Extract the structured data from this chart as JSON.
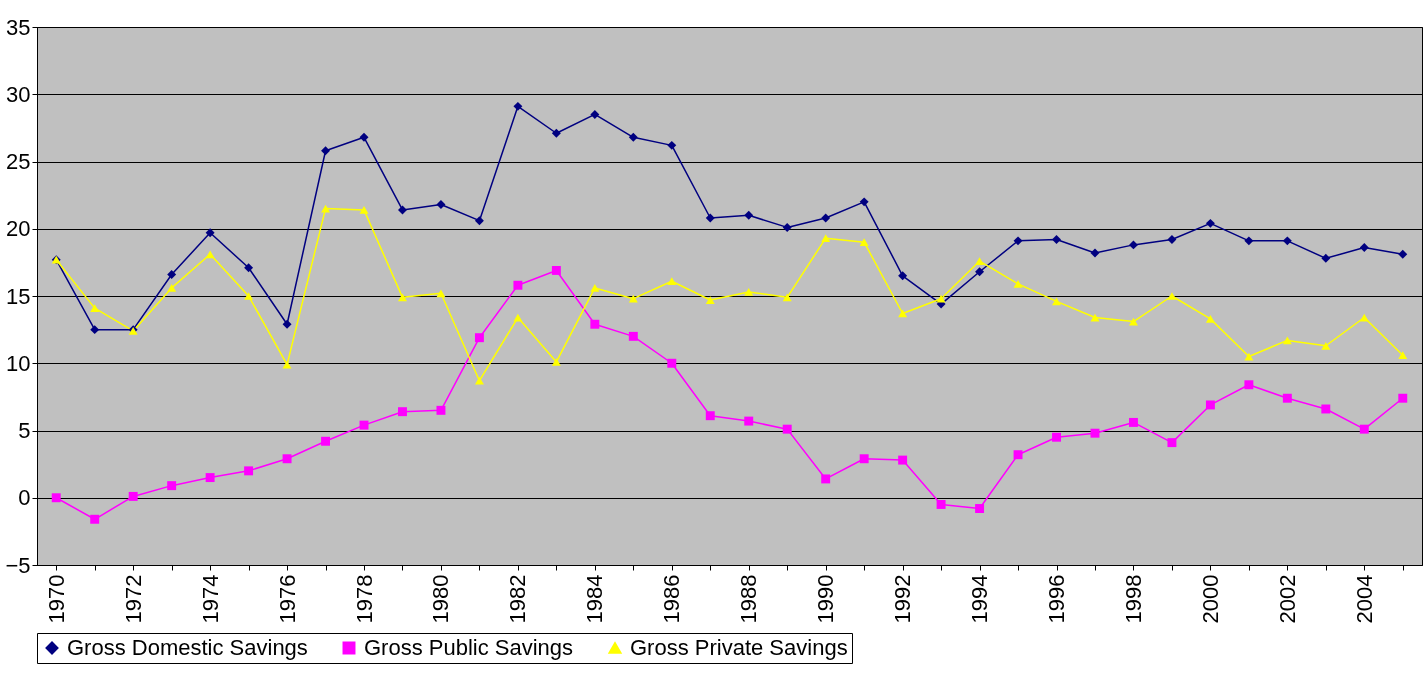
{
  "chart_data": {
    "type": "line",
    "categories": [
      "1970",
      null,
      "1972",
      null,
      "1974",
      null,
      "1976",
      null,
      "1978",
      null,
      "1980",
      null,
      "1982",
      null,
      "1984",
      null,
      "1986",
      null,
      "1988",
      null,
      "1990",
      null,
      "1992",
      null,
      "1994",
      null,
      "1996",
      null,
      "1998",
      null,
      "2000",
      null,
      "2002",
      null,
      "2004",
      null
    ],
    "series": [
      {
        "name": "Gross Domestic Savings",
        "color": "#000080",
        "marker": "diamond",
        "values": [
          17.7,
          12.5,
          12.5,
          16.6,
          19.7,
          17.1,
          12.9,
          25.8,
          26.8,
          21.4,
          21.8,
          20.6,
          29.1,
          27.1,
          28.5,
          26.8,
          26.2,
          20.8,
          21.0,
          20.1,
          20.8,
          22.0,
          16.5,
          14.4,
          16.8,
          19.1,
          19.2,
          18.2,
          18.8,
          19.2,
          20.4,
          19.1,
          19.1,
          17.8,
          18.6,
          18.1
        ]
      },
      {
        "name": "Gross Public Savings",
        "color": "#ff00ff",
        "marker": "square",
        "values": [
          0.0,
          -1.6,
          0.1,
          0.9,
          1.5,
          2.0,
          2.9,
          4.2,
          5.4,
          6.4,
          6.5,
          11.9,
          15.8,
          16.9,
          12.9,
          12.0,
          10.0,
          6.1,
          5.7,
          5.1,
          1.4,
          2.9,
          2.8,
          -0.5,
          -0.8,
          3.2,
          4.5,
          4.8,
          5.6,
          4.1,
          6.9,
          8.4,
          7.4,
          6.6,
          5.1,
          7.4
        ]
      },
      {
        "name": "Gross Private Savings",
        "color": "#ffff00",
        "marker": "triangle",
        "values": [
          17.7,
          14.1,
          12.4,
          15.6,
          18.1,
          15.0,
          9.9,
          21.5,
          21.4,
          14.9,
          15.2,
          8.7,
          13.4,
          10.1,
          15.6,
          14.8,
          16.1,
          14.7,
          15.3,
          14.9,
          19.3,
          19.0,
          13.7,
          14.8,
          17.6,
          15.9,
          14.6,
          13.4,
          13.1,
          15.0,
          13.3,
          10.5,
          11.7,
          11.3,
          13.4,
          10.6
        ]
      }
    ],
    "ylim": [
      -5,
      35
    ],
    "yticks": [
      -5,
      0,
      5,
      10,
      15,
      20,
      25,
      30,
      35
    ],
    "grid": "y",
    "legend": "bottom"
  }
}
